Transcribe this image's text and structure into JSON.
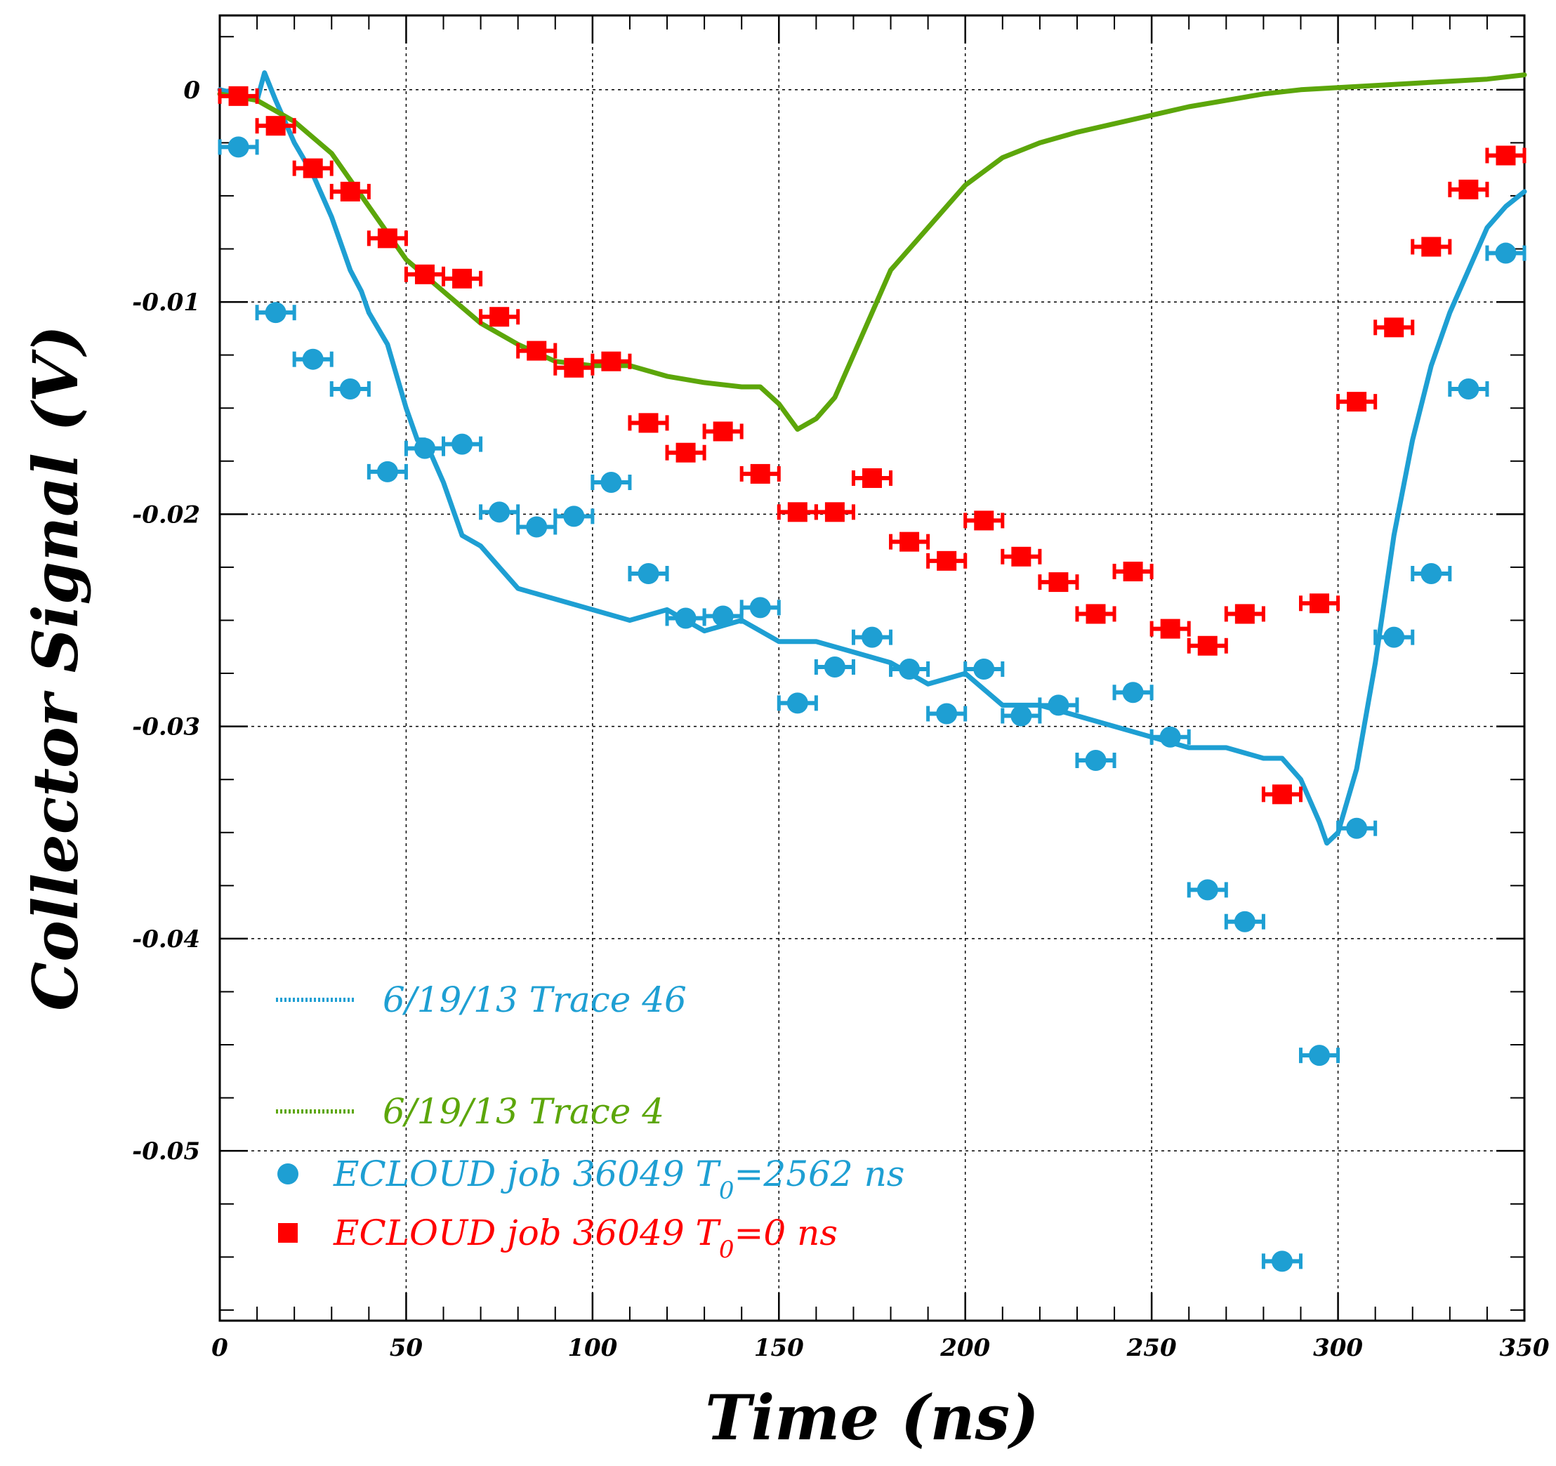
{
  "chart_data": {
    "type": "line",
    "title": "",
    "xlabel": "Time (ns)",
    "ylabel": "Collector Signal (V)",
    "xlim": [
      0,
      350
    ],
    "ylim": [
      -0.058,
      0.0035
    ],
    "grid": true,
    "legend_position": "bottom-left",
    "x_ticks": [
      0,
      50,
      100,
      150,
      200,
      250,
      300,
      350
    ],
    "x_tick_labels": [
      "0",
      "50",
      "100",
      "150",
      "200",
      "250",
      "300",
      "350"
    ],
    "y_ticks": [
      0,
      -0.01,
      -0.02,
      -0.03,
      -0.04,
      -0.05
    ],
    "y_tick_labels": [
      "0",
      "-0.01",
      "-0.02",
      "-0.03",
      "-0.04",
      "-0.05"
    ],
    "series": [
      {
        "name": "6/19/13 Trace 46",
        "kind": "line",
        "color": "#1e9fd3",
        "x": [
          0,
          5,
          10,
          12,
          15,
          20,
          25,
          30,
          35,
          38,
          40,
          45,
          50,
          53,
          55,
          60,
          65,
          70,
          75,
          80,
          90,
          100,
          110,
          120,
          130,
          140,
          150,
          160,
          170,
          180,
          190,
          200,
          210,
          220,
          230,
          240,
          250,
          260,
          270,
          280,
          285,
          290,
          295,
          297,
          300,
          305,
          310,
          315,
          320,
          325,
          330,
          335,
          340,
          345,
          350
        ],
        "y": [
          0.0,
          -0.0002,
          -0.0005,
          0.0008,
          -0.0005,
          -0.0025,
          -0.004,
          -0.006,
          -0.0085,
          -0.0095,
          -0.0105,
          -0.012,
          -0.015,
          -0.0165,
          -0.0165,
          -0.0185,
          -0.021,
          -0.0215,
          -0.0225,
          -0.0235,
          -0.024,
          -0.0245,
          -0.025,
          -0.0245,
          -0.0255,
          -0.025,
          -0.026,
          -0.026,
          -0.0265,
          -0.027,
          -0.028,
          -0.0275,
          -0.029,
          -0.029,
          -0.0295,
          -0.03,
          -0.0305,
          -0.031,
          -0.031,
          -0.0315,
          -0.0315,
          -0.0325,
          -0.0345,
          -0.0355,
          -0.035,
          -0.032,
          -0.027,
          -0.021,
          -0.0165,
          -0.013,
          -0.0105,
          -0.0085,
          -0.0065,
          -0.0055,
          -0.0048
        ]
      },
      {
        "name": "6/19/13 Trace 4",
        "kind": "line",
        "color": "#5ca60a",
        "x": [
          0,
          10,
          20,
          30,
          40,
          50,
          60,
          70,
          80,
          90,
          100,
          110,
          120,
          130,
          140,
          145,
          150,
          155,
          160,
          165,
          170,
          175,
          180,
          190,
          200,
          210,
          220,
          230,
          240,
          250,
          260,
          270,
          280,
          290,
          300,
          310,
          320,
          330,
          340,
          350
        ],
        "y": [
          -0.0002,
          -0.0005,
          -0.0015,
          -0.003,
          -0.0055,
          -0.008,
          -0.0095,
          -0.011,
          -0.012,
          -0.0128,
          -0.013,
          -0.013,
          -0.0135,
          -0.0138,
          -0.014,
          -0.014,
          -0.0148,
          -0.016,
          -0.0155,
          -0.0145,
          -0.0125,
          -0.0105,
          -0.0085,
          -0.0065,
          -0.0045,
          -0.0032,
          -0.0025,
          -0.002,
          -0.0016,
          -0.0012,
          -0.0008,
          -0.0005,
          -0.0002,
          0.0,
          0.0001,
          0.0002,
          0.0003,
          0.0004,
          0.0005,
          0.0007
        ]
      },
      {
        "name": "ECLOUD job 36049 T0=2562 ns",
        "kind": "scatter-xerr",
        "color": "#1e9fd3",
        "marker": "circle",
        "xerr": 5,
        "x": [
          5,
          15,
          25,
          35,
          45,
          55,
          65,
          75,
          85,
          95,
          105,
          115,
          125,
          135,
          145,
          155,
          165,
          175,
          185,
          195,
          205,
          215,
          225,
          235,
          245,
          255,
          265,
          275,
          285,
          295,
          305,
          315,
          325,
          335,
          345
        ],
        "y": [
          -0.0027,
          -0.0105,
          -0.0127,
          -0.0141,
          -0.018,
          -0.0169,
          -0.0167,
          -0.0199,
          -0.0206,
          -0.0201,
          -0.0185,
          -0.0228,
          -0.0249,
          -0.0248,
          -0.0244,
          -0.0289,
          -0.0272,
          -0.0258,
          -0.0273,
          -0.0294,
          -0.0273,
          -0.0295,
          -0.029,
          -0.0316,
          -0.0284,
          -0.0305,
          -0.0377,
          -0.0392,
          -0.0552,
          -0.0455,
          -0.0348,
          -0.0258,
          -0.0228,
          -0.0141,
          -0.0077
        ]
      },
      {
        "name": "ECLOUD job 36049 T0=0 ns",
        "kind": "scatter-xerr",
        "color": "#ff0000",
        "marker": "square",
        "xerr": 5,
        "x": [
          5,
          15,
          25,
          35,
          45,
          55,
          65,
          75,
          85,
          95,
          105,
          115,
          125,
          135,
          145,
          155,
          165,
          175,
          185,
          195,
          205,
          215,
          225,
          235,
          245,
          255,
          265,
          275,
          285,
          295,
          305,
          315,
          325,
          335,
          345
        ],
        "y": [
          -0.0003,
          -0.0017,
          -0.0037,
          -0.0048,
          -0.007,
          -0.0087,
          -0.0089,
          -0.0107,
          -0.0123,
          -0.0131,
          -0.0128,
          -0.0157,
          -0.0171,
          -0.0161,
          -0.0181,
          -0.0199,
          -0.0199,
          -0.0183,
          -0.0213,
          -0.0222,
          -0.0203,
          -0.022,
          -0.0232,
          -0.0247,
          -0.0227,
          -0.0254,
          -0.0262,
          -0.0247,
          -0.0332,
          -0.0242,
          -0.0147,
          -0.0112,
          -0.0074,
          -0.0047,
          -0.0031
        ]
      }
    ],
    "legend": [
      {
        "label": "6/19/13 Trace 46",
        "color": "#1e9fd3",
        "symbol": "dotted-line"
      },
      {
        "label": "6/19/13 Trace 4",
        "color": "#5ca60a",
        "symbol": "dotted-line"
      },
      {
        "label_main": "ECLOUD job 36049 T",
        "label_sub": "0",
        "label_rest": "=2562 ns",
        "color": "#1e9fd3",
        "symbol": "circle"
      },
      {
        "label_main": "ECLOUD job 36049 T",
        "label_sub": "0",
        "label_rest": "=0 ns",
        "color": "#ff0000",
        "symbol": "square"
      }
    ]
  }
}
